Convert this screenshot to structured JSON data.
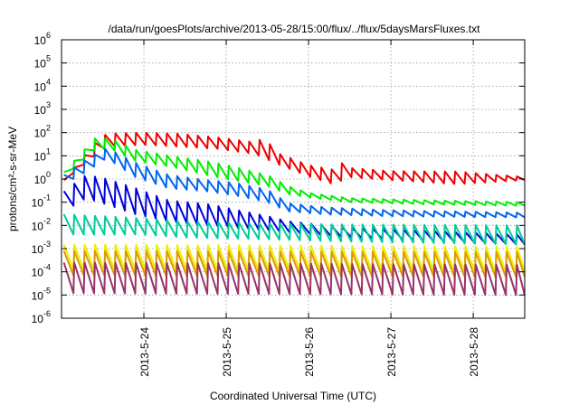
{
  "chart_data": {
    "type": "line",
    "title": "/data/run/goesPlots/archive/2013-05-28/15:00/flux/../flux/5daysMarsFluxes.txt",
    "xlabel": "Coordinated Universal Time (UTC)",
    "ylabel": "protons/cm²-s-sr-MeV",
    "y_scale": "log",
    "ylim": [
      "1e-6",
      "1e6"
    ],
    "y_ticks": [
      {
        "base": "10",
        "exp": "6"
      },
      {
        "base": "10",
        "exp": "5"
      },
      {
        "base": "10",
        "exp": "4"
      },
      {
        "base": "10",
        "exp": "3"
      },
      {
        "base": "10",
        "exp": "2"
      },
      {
        "base": "10",
        "exp": "1"
      },
      {
        "base": "10",
        "exp": "0"
      },
      {
        "base": "10",
        "exp": "-1"
      },
      {
        "base": "10",
        "exp": "-2"
      },
      {
        "base": "10",
        "exp": "-3"
      },
      {
        "base": "10",
        "exp": "-4"
      },
      {
        "base": "10",
        "exp": "-5"
      },
      {
        "base": "10",
        "exp": "-6"
      }
    ],
    "xlim": [
      "2013-05-23 00:00",
      "2013-05-28 15:00"
    ],
    "x_ticks": [
      "2013-5-24",
      "2013-5-25",
      "2013-5-26",
      "2013-5-27",
      "2013-5-28"
    ],
    "grid": true,
    "series": [
      {
        "color": "#ee0000",
        "peak": [
          [
            0.03,
            0.9
          ],
          [
            0.4,
            35
          ],
          [
            0.55,
            90
          ],
          [
            1.0,
            100
          ],
          [
            1.4,
            90
          ],
          [
            1.9,
            62
          ],
          [
            2.35,
            38
          ],
          [
            2.45,
            60
          ],
          [
            2.65,
            12
          ],
          [
            3.0,
            4
          ],
          [
            3.3,
            2.5
          ],
          [
            3.33,
            7
          ],
          [
            3.5,
            3
          ],
          [
            4.0,
            2.2
          ],
          [
            4.8,
            2.1
          ],
          [
            5.625,
            1.2
          ]
        ],
        "trough": [
          [
            0.03,
            0.9
          ],
          [
            0.55,
            25
          ],
          [
            1.0,
            30
          ],
          [
            1.9,
            20
          ],
          [
            2.35,
            12
          ],
          [
            2.65,
            4
          ],
          [
            3.0,
            1.3
          ],
          [
            3.3,
            0.6
          ],
          [
            3.5,
            1.2
          ],
          [
            4.0,
            0.9
          ],
          [
            4.8,
            0.6
          ],
          [
            5.625,
            0.9
          ]
        ]
      },
      {
        "color": "#00ee00",
        "peak": [
          [
            0.03,
            2
          ],
          [
            0.4,
            55
          ],
          [
            0.6,
            55
          ],
          [
            0.9,
            18
          ],
          [
            1.4,
            9
          ],
          [
            1.75,
            6
          ],
          [
            2.0,
            4
          ],
          [
            2.5,
            1.5
          ],
          [
            2.75,
            0.5
          ],
          [
            3.0,
            0.25
          ],
          [
            3.5,
            0.15
          ],
          [
            4.5,
            0.12
          ],
          [
            5.625,
            0.1
          ]
        ],
        "trough": [
          [
            0.03,
            1.2
          ],
          [
            0.4,
            18
          ],
          [
            0.6,
            20
          ],
          [
            0.9,
            6
          ],
          [
            1.4,
            3
          ],
          [
            1.75,
            1.5
          ],
          [
            2.0,
            1.0
          ],
          [
            2.5,
            0.5
          ],
          [
            2.75,
            0.22
          ],
          [
            3.0,
            0.16
          ],
          [
            3.5,
            0.1
          ],
          [
            4.5,
            0.08
          ],
          [
            5.625,
            0.07
          ]
        ]
      },
      {
        "color": "#0066ee",
        "peak": [
          [
            0.03,
            1.5
          ],
          [
            0.3,
            7
          ],
          [
            0.55,
            22
          ],
          [
            0.9,
            5
          ],
          [
            1.3,
            1.5
          ],
          [
            1.75,
            0.9
          ],
          [
            2.1,
            0.7
          ],
          [
            2.5,
            0.35
          ],
          [
            2.75,
            0.09
          ],
          [
            3.2,
            0.06
          ],
          [
            4.0,
            0.045
          ],
          [
            5.625,
            0.035
          ]
        ],
        "trough": [
          [
            0.03,
            0.6
          ],
          [
            0.3,
            2.0
          ],
          [
            0.55,
            8
          ],
          [
            0.9,
            1.2
          ],
          [
            1.3,
            0.4
          ],
          [
            1.75,
            0.3
          ],
          [
            2.1,
            0.2
          ],
          [
            2.5,
            0.1
          ],
          [
            2.75,
            0.04
          ],
          [
            3.2,
            0.03
          ],
          [
            4.0,
            0.025
          ],
          [
            5.625,
            0.022
          ]
        ]
      },
      {
        "color": "#0000dd",
        "peak": [
          [
            0.03,
            0.3
          ],
          [
            0.3,
            1.5
          ],
          [
            0.55,
            1.0
          ],
          [
            0.9,
            0.4
          ],
          [
            1.3,
            0.12
          ],
          [
            1.8,
            0.08
          ],
          [
            2.5,
            0.025
          ],
          [
            2.75,
            0.015
          ],
          [
            3.5,
            0.008
          ],
          [
            4.5,
            0.006
          ],
          [
            5.625,
            0.004
          ]
        ],
        "trough": [
          [
            0.03,
            0.04
          ],
          [
            0.3,
            0.15
          ],
          [
            0.55,
            0.08
          ],
          [
            0.9,
            0.03
          ],
          [
            1.3,
            0.015
          ],
          [
            1.8,
            0.01
          ],
          [
            2.5,
            0.006
          ],
          [
            2.75,
            0.005
          ],
          [
            3.5,
            0.003
          ],
          [
            4.5,
            0.002
          ],
          [
            5.625,
            0.0015
          ]
        ]
      },
      {
        "color": "#00cc99",
        "peak": [
          [
            0.03,
            0.03
          ],
          [
            0.5,
            0.025
          ],
          [
            1.0,
            0.02
          ],
          [
            1.5,
            0.015
          ],
          [
            2.5,
            0.012
          ],
          [
            3.5,
            0.011
          ],
          [
            5.625,
            0.01
          ]
        ],
        "trough": [
          [
            0.03,
            0.004
          ],
          [
            0.5,
            0.004
          ],
          [
            1.0,
            0.004
          ],
          [
            1.5,
            0.003
          ],
          [
            2.5,
            0.0025
          ],
          [
            3.5,
            0.002
          ],
          [
            5.625,
            0.0015
          ]
        ]
      },
      {
        "color": "#eeee00",
        "peak": [
          [
            0.03,
            0.0015
          ],
          [
            5.625,
            0.0012
          ]
        ],
        "trough": [
          [
            0.03,
            0.00012
          ],
          [
            5.625,
            0.0001
          ]
        ]
      },
      {
        "color": "#dd9900",
        "peak": [
          [
            0.03,
            0.0008
          ],
          [
            5.625,
            0.0007
          ]
        ],
        "trough": [
          [
            0.03,
            7e-05
          ],
          [
            5.625,
            6e-05
          ]
        ]
      },
      {
        "color": "#993366",
        "peak": [
          [
            0.03,
            0.00025
          ],
          [
            5.625,
            0.0002
          ]
        ],
        "trough": [
          [
            0.03,
            1.2e-05
          ],
          [
            5.625,
            1e-05
          ]
        ]
      }
    ]
  }
}
